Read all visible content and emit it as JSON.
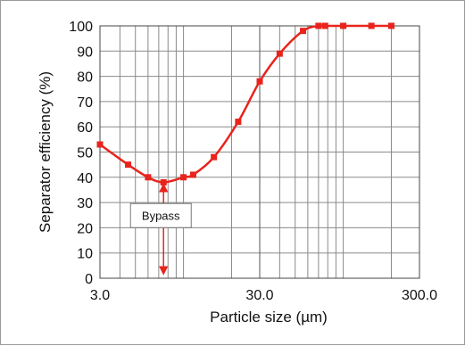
{
  "chart_data": {
    "type": "line",
    "title": "",
    "xlabel": "Particle size (µm)",
    "ylabel": "Separator efficiency (%)",
    "x_scale": "log",
    "xlim": [
      3.0,
      300.0
    ],
    "ylim": [
      0,
      100
    ],
    "x_ticks": [
      "3.0",
      "30.0",
      "300.0"
    ],
    "y_ticks": [
      "0",
      "10",
      "20",
      "30",
      "40",
      "50",
      "60",
      "70",
      "80",
      "90",
      "100"
    ],
    "grid": true,
    "legend": "none",
    "series": [
      {
        "color": "#e8241d",
        "x": [
          3.0,
          4.5,
          6.0,
          7.5,
          10.0,
          11.5,
          15.5,
          22.0,
          30.0,
          40.0,
          56.0,
          70.0,
          77.0,
          100.0,
          150.0,
          200.0
        ],
        "y": [
          53,
          45,
          40,
          38,
          40,
          41,
          48,
          62,
          78,
          89,
          98,
          100,
          100,
          100,
          100,
          100
        ]
      }
    ],
    "annotations": [
      {
        "text": "Bypass",
        "x": 7.5,
        "y_from": 38,
        "y_to": 3
      }
    ]
  }
}
